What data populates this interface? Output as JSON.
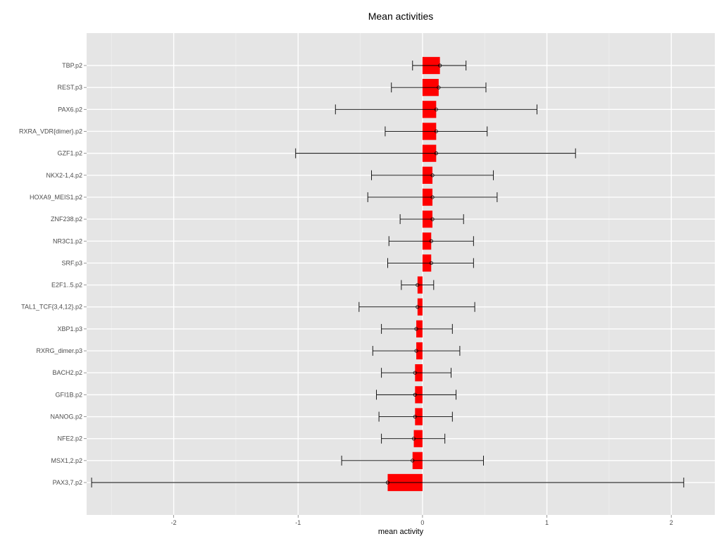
{
  "chart_data": {
    "type": "bar",
    "orientation": "horizontal",
    "title": "Mean activities",
    "xlabel": "mean activity",
    "ylabel": "",
    "xlim": [
      -2.7,
      2.35
    ],
    "x_ticks": [
      -2,
      -1,
      0,
      1,
      2
    ],
    "grid": true,
    "bar_color": "#ff0000",
    "panel_color": "#e5e5e5",
    "grid_color": "#ffffff",
    "categories": [
      "TBP.p2",
      "REST.p3",
      "PAX6.p2",
      "RXRA_VDR{dimer}.p2",
      "GZF1.p2",
      "NKX2-1,4.p2",
      "HOXA9_MEIS1.p2",
      "ZNF238.p2",
      "NR3C1.p2",
      "SRF.p3",
      "E2F1..5.p2",
      "TAL1_TCF{3,4,12}.p2",
      "XBP1.p3",
      "RXRG_dimer.p3",
      "BACH2.p2",
      "GFI1B.p2",
      "NANOG.p2",
      "NFE2.p2",
      "MSX1,2.p2",
      "PAX3,7.p2"
    ],
    "series": [
      {
        "values": [
          0.14,
          0.13,
          0.11,
          0.11,
          0.11,
          0.08,
          0.08,
          0.08,
          0.07,
          0.07,
          -0.04,
          -0.04,
          -0.05,
          -0.05,
          -0.06,
          -0.06,
          -0.06,
          -0.07,
          -0.08,
          -0.28
        ],
        "error_low": [
          -0.08,
          -0.25,
          -0.7,
          -0.3,
          -1.02,
          -0.41,
          -0.44,
          -0.18,
          -0.27,
          -0.28,
          -0.17,
          -0.51,
          -0.33,
          -0.4,
          -0.33,
          -0.37,
          -0.35,
          -0.33,
          -0.65,
          -2.66
        ],
        "error_high": [
          0.35,
          0.51,
          0.92,
          0.52,
          1.23,
          0.57,
          0.6,
          0.33,
          0.41,
          0.41,
          0.09,
          0.42,
          0.24,
          0.3,
          0.23,
          0.27,
          0.24,
          0.18,
          0.49,
          2.1
        ]
      }
    ]
  }
}
